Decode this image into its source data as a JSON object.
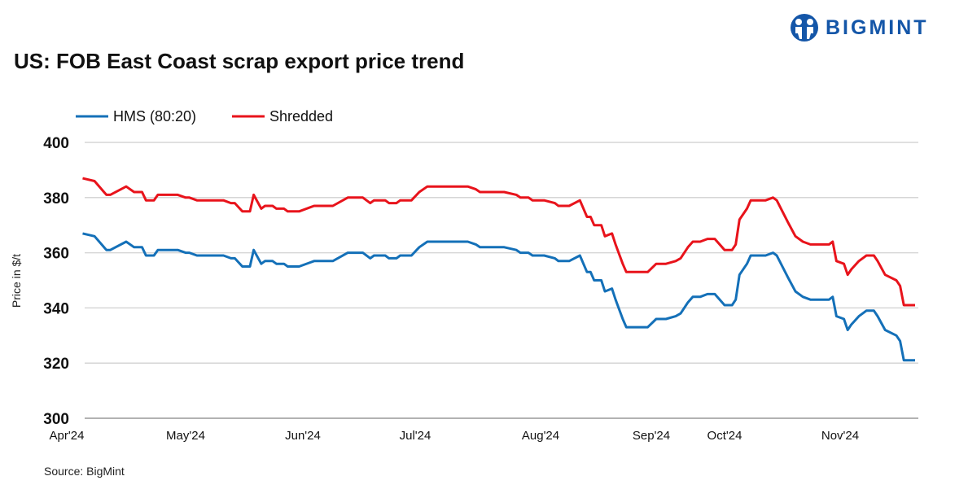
{
  "brand": {
    "name": "BIGMINT",
    "color": "#1456a8"
  },
  "source": "Source: BigMint",
  "chart_data": {
    "type": "line",
    "title": "US: FOB East Coast scrap export price trend",
    "xlabel": "",
    "ylabel": "Price in $/t",
    "ylim": [
      300,
      400
    ],
    "yticks": [
      "300",
      "320",
      "340",
      "360",
      "380",
      "400"
    ],
    "xtick_labels": [
      "Apr'24",
      "May'24",
      "Jun'24",
      "Jul'24",
      "Aug'24",
      "Sep'24",
      "Oct'24",
      "Nov'24"
    ],
    "grid": "horizontal",
    "legend": "top-left",
    "x": [
      "2024-04-05",
      "2024-04-08",
      "2024-04-11",
      "2024-04-12",
      "2024-04-16",
      "2024-04-18",
      "2024-04-20",
      "2024-04-21",
      "2024-04-23",
      "2024-04-24",
      "2024-04-29",
      "2024-05-01",
      "2024-05-02",
      "2024-05-04",
      "2024-05-11",
      "2024-05-13",
      "2024-05-14",
      "2024-05-16",
      "2024-05-18",
      "2024-05-19",
      "2024-05-21",
      "2024-05-22",
      "2024-05-24",
      "2024-05-25",
      "2024-05-27",
      "2024-05-28",
      "2024-05-31",
      "2024-06-04",
      "2024-06-09",
      "2024-06-13",
      "2024-06-17",
      "2024-06-19",
      "2024-06-20",
      "2024-06-23",
      "2024-06-24",
      "2024-06-26",
      "2024-06-27",
      "2024-06-30",
      "2024-07-02",
      "2024-07-04",
      "2024-07-14",
      "2024-07-16",
      "2024-07-17",
      "2024-07-23",
      "2024-07-26",
      "2024-07-27",
      "2024-07-29",
      "2024-07-30",
      "2024-08-02",
      "2024-08-05",
      "2024-08-06",
      "2024-08-09",
      "2024-08-12",
      "2024-08-14",
      "2024-08-15",
      "2024-08-16",
      "2024-08-18",
      "2024-08-19",
      "2024-08-21",
      "2024-08-22",
      "2024-08-24",
      "2024-08-25",
      "2024-08-31",
      "2024-09-03",
      "2024-09-07",
      "2024-09-11",
      "2024-09-13",
      "2024-09-16",
      "2024-09-18",
      "2024-09-21",
      "2024-09-24",
      "2024-09-27",
      "2024-10-01",
      "2024-10-03",
      "2024-10-04",
      "2024-10-05",
      "2024-10-07",
      "2024-10-08",
      "2024-10-12",
      "2024-10-14",
      "2024-10-15",
      "2024-10-18",
      "2024-10-20",
      "2024-10-22",
      "2024-10-24",
      "2024-10-29",
      "2024-10-30",
      "2024-10-31",
      "2024-11-02",
      "2024-11-03",
      "2024-11-04",
      "2024-11-06",
      "2024-11-07",
      "2024-11-08",
      "2024-11-10",
      "2024-11-11",
      "2024-11-13",
      "2024-11-16",
      "2024-11-17",
      "2024-11-18",
      "2024-11-21"
    ],
    "series": [
      {
        "name": "HMS (80:20)",
        "color": "#1470b8",
        "values": [
          367,
          366,
          361,
          361,
          364,
          362,
          362,
          359,
          359,
          361,
          361,
          360,
          360,
          359,
          359,
          358,
          358,
          355,
          355,
          361,
          356,
          357,
          357,
          356,
          356,
          355,
          355,
          357,
          357,
          360,
          360,
          358,
          359,
          359,
          358,
          358,
          359,
          359,
          362,
          364,
          364,
          363,
          362,
          362,
          361,
          360,
          360,
          359,
          359,
          358,
          357,
          357,
          359,
          353,
          353,
          350,
          350,
          346,
          347,
          343,
          336,
          333,
          333,
          336,
          336,
          337,
          338,
          342,
          344,
          344,
          345,
          345,
          341,
          341,
          343,
          352,
          356,
          359,
          359,
          360,
          359,
          351,
          346,
          344,
          343,
          343,
          344,
          337,
          336,
          332,
          334,
          337,
          338,
          339,
          339,
          337,
          332,
          330,
          328,
          321,
          321
        ]
      },
      {
        "name": "Shredded",
        "color": "#e8131b",
        "values": [
          387,
          386,
          381,
          381,
          384,
          382,
          382,
          379,
          379,
          381,
          381,
          380,
          380,
          379,
          379,
          378,
          378,
          375,
          375,
          381,
          376,
          377,
          377,
          376,
          376,
          375,
          375,
          377,
          377,
          380,
          380,
          378,
          379,
          379,
          378,
          378,
          379,
          379,
          382,
          384,
          384,
          383,
          382,
          382,
          381,
          380,
          380,
          379,
          379,
          378,
          377,
          377,
          379,
          373,
          373,
          370,
          370,
          366,
          367,
          363,
          356,
          353,
          353,
          356,
          356,
          357,
          358,
          362,
          364,
          364,
          365,
          365,
          361,
          361,
          363,
          372,
          376,
          379,
          379,
          380,
          379,
          371,
          366,
          364,
          363,
          363,
          364,
          357,
          356,
          352,
          354,
          357,
          358,
          359,
          359,
          357,
          352,
          350,
          348,
          341,
          341
        ]
      }
    ]
  }
}
